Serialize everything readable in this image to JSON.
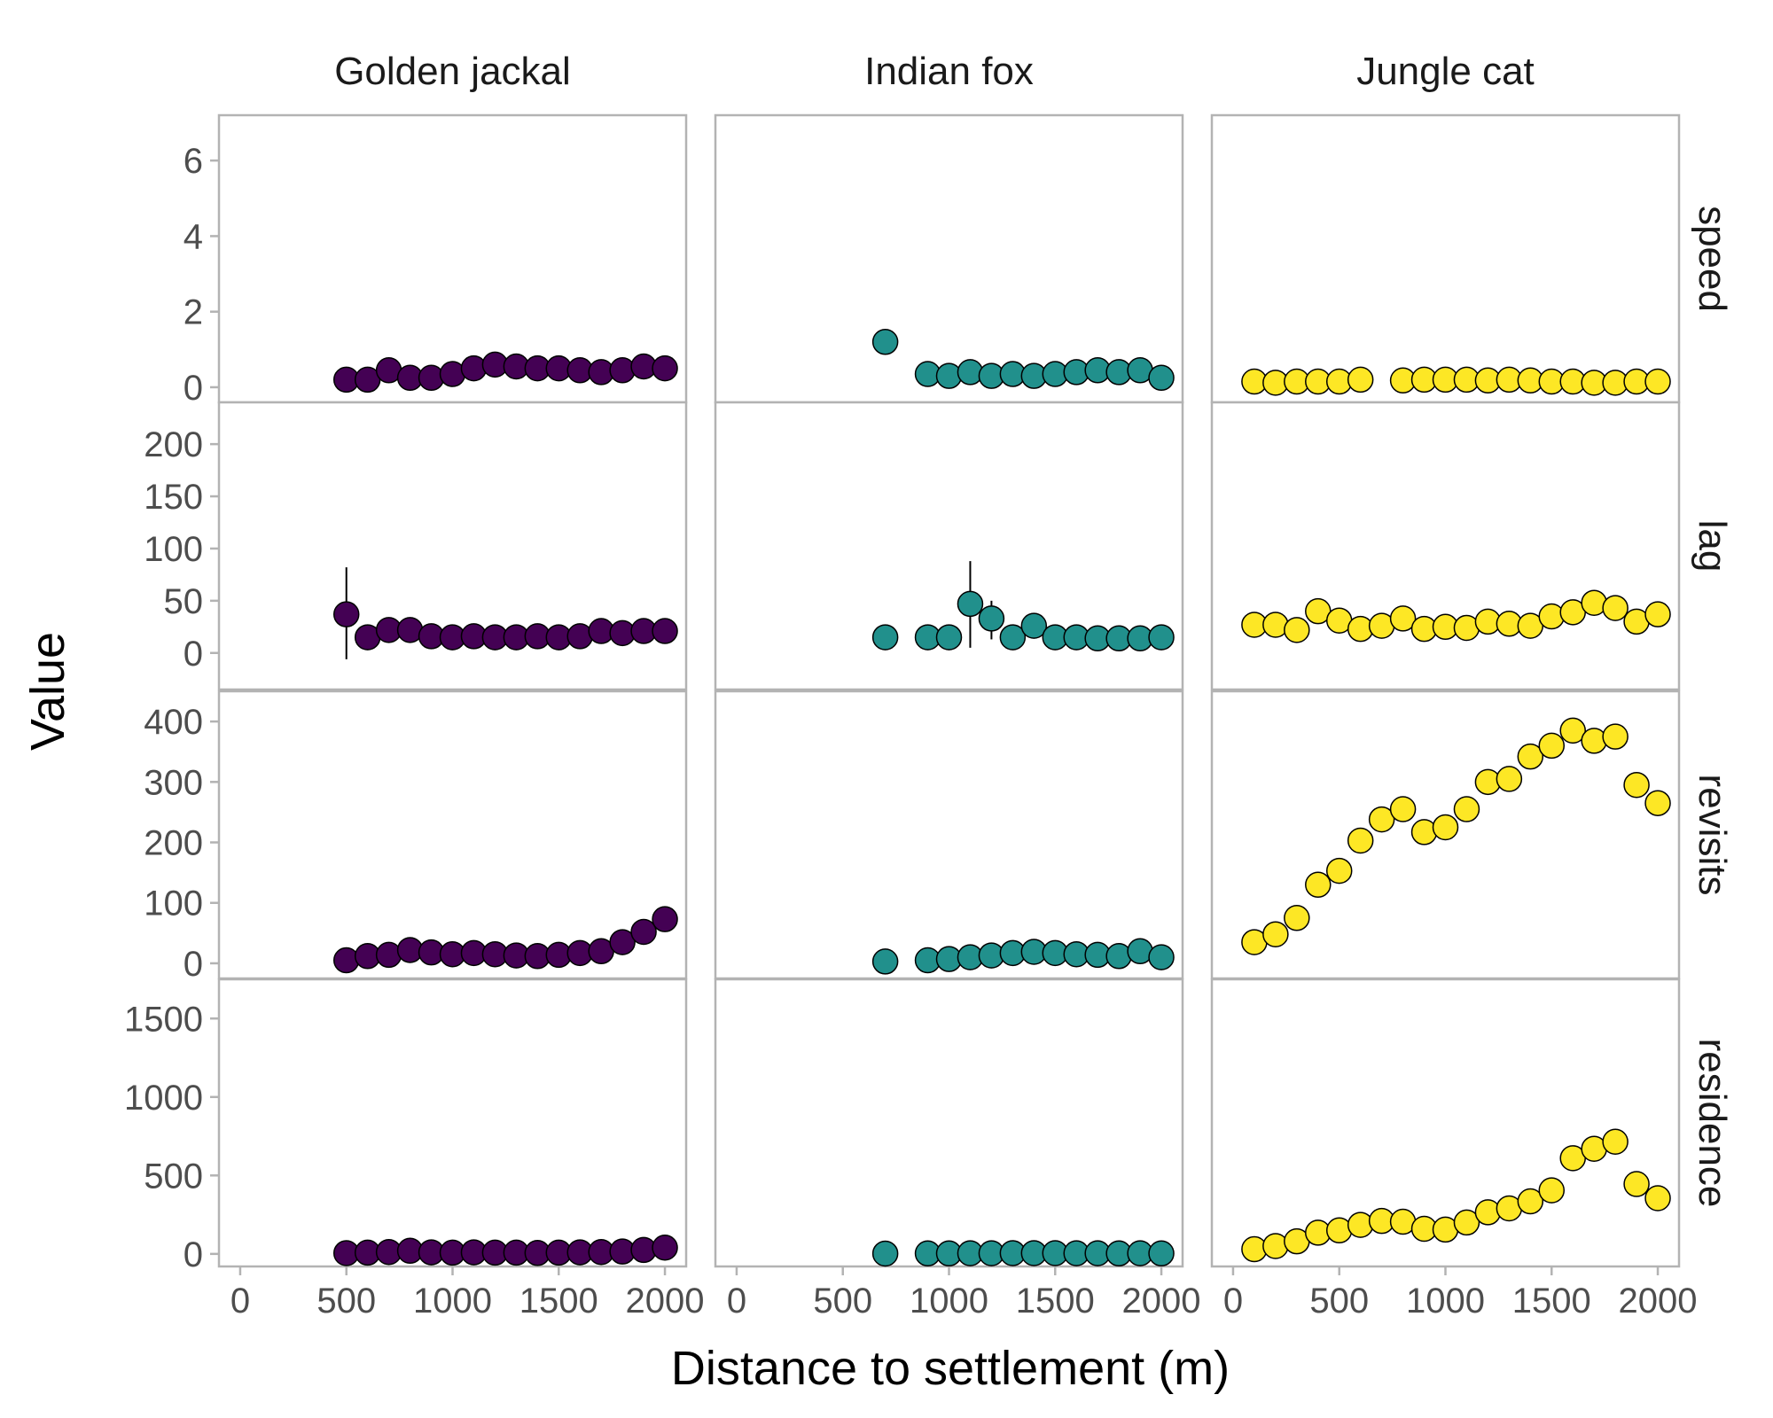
{
  "chart_data": {
    "type": "scatter",
    "xlabel": "Distance to settlement (m)",
    "ylabel": "Value",
    "xlim": [
      -100,
      2100
    ],
    "x_ticks": [
      0,
      500,
      1000,
      1500,
      2000
    ],
    "columns": [
      "Golden jackal",
      "Indian fox",
      "Jungle cat"
    ],
    "colors": {
      "Golden jackal": "#440154",
      "Indian fox": "#21908C",
      "Jungle cat": "#FDE725"
    },
    "rows": [
      {
        "name": "speed",
        "ylim": [
          -0.4,
          7.2
        ],
        "ticks": [
          0,
          2,
          4,
          6
        ]
      },
      {
        "name": "lag",
        "ylim": [
          -35,
          240
        ],
        "ticks": [
          0,
          50,
          100,
          150,
          200
        ]
      },
      {
        "name": "revisits",
        "ylim": [
          -25,
          450
        ],
        "ticks": [
          0,
          100,
          200,
          300,
          400
        ]
      },
      {
        "name": "residence",
        "ylim": [
          -80,
          1750
        ],
        "ticks": [
          0,
          500,
          1000,
          1500
        ]
      }
    ],
    "panels": [
      {
        "species": "Golden jackal",
        "metric": "speed",
        "points": [
          {
            "x": 500,
            "y": 0.2
          },
          {
            "x": 600,
            "y": 0.2
          },
          {
            "x": 700,
            "y": 0.45
          },
          {
            "x": 800,
            "y": 0.25
          },
          {
            "x": 900,
            "y": 0.25
          },
          {
            "x": 1000,
            "y": 0.35
          },
          {
            "x": 1100,
            "y": 0.5
          },
          {
            "x": 1200,
            "y": 0.6
          },
          {
            "x": 1300,
            "y": 0.55
          },
          {
            "x": 1400,
            "y": 0.5
          },
          {
            "x": 1500,
            "y": 0.5
          },
          {
            "x": 1600,
            "y": 0.45
          },
          {
            "x": 1700,
            "y": 0.4
          },
          {
            "x": 1800,
            "y": 0.45
          },
          {
            "x": 1900,
            "y": 0.55
          },
          {
            "x": 2000,
            "y": 0.5
          }
        ]
      },
      {
        "species": "Golden jackal",
        "metric": "lag",
        "points": [
          {
            "x": 500,
            "y": 37,
            "lo": -6,
            "hi": 82
          },
          {
            "x": 600,
            "y": 15
          },
          {
            "x": 700,
            "y": 22
          },
          {
            "x": 800,
            "y": 22
          },
          {
            "x": 900,
            "y": 16
          },
          {
            "x": 1000,
            "y": 15
          },
          {
            "x": 1100,
            "y": 16
          },
          {
            "x": 1200,
            "y": 15
          },
          {
            "x": 1300,
            "y": 15
          },
          {
            "x": 1400,
            "y": 16
          },
          {
            "x": 1500,
            "y": 15
          },
          {
            "x": 1600,
            "y": 16
          },
          {
            "x": 1700,
            "y": 21
          },
          {
            "x": 1800,
            "y": 19
          },
          {
            "x": 1900,
            "y": 21
          },
          {
            "x": 2000,
            "y": 21
          }
        ]
      },
      {
        "species": "Golden jackal",
        "metric": "revisits",
        "points": [
          {
            "x": 500,
            "y": 5
          },
          {
            "x": 600,
            "y": 12
          },
          {
            "x": 700,
            "y": 14
          },
          {
            "x": 800,
            "y": 22
          },
          {
            "x": 900,
            "y": 18
          },
          {
            "x": 1000,
            "y": 15
          },
          {
            "x": 1100,
            "y": 17
          },
          {
            "x": 1200,
            "y": 15
          },
          {
            "x": 1300,
            "y": 13
          },
          {
            "x": 1400,
            "y": 12
          },
          {
            "x": 1500,
            "y": 14
          },
          {
            "x": 1600,
            "y": 17
          },
          {
            "x": 1700,
            "y": 20
          },
          {
            "x": 1800,
            "y": 35
          },
          {
            "x": 1900,
            "y": 52
          },
          {
            "x": 2000,
            "y": 73
          }
        ]
      },
      {
        "species": "Golden jackal",
        "metric": "residence",
        "points": [
          {
            "x": 500,
            "y": 5
          },
          {
            "x": 600,
            "y": 8
          },
          {
            "x": 700,
            "y": 12
          },
          {
            "x": 800,
            "y": 20
          },
          {
            "x": 900,
            "y": 10
          },
          {
            "x": 1000,
            "y": 8
          },
          {
            "x": 1100,
            "y": 10
          },
          {
            "x": 1200,
            "y": 8
          },
          {
            "x": 1300,
            "y": 8
          },
          {
            "x": 1400,
            "y": 6
          },
          {
            "x": 1500,
            "y": 8
          },
          {
            "x": 1600,
            "y": 10
          },
          {
            "x": 1700,
            "y": 12
          },
          {
            "x": 1800,
            "y": 15
          },
          {
            "x": 1900,
            "y": 25
          },
          {
            "x": 2000,
            "y": 40
          }
        ]
      },
      {
        "species": "Indian fox",
        "metric": "speed",
        "points": [
          {
            "x": 700,
            "y": 1.2
          },
          {
            "x": 900,
            "y": 0.35
          },
          {
            "x": 1000,
            "y": 0.3
          },
          {
            "x": 1100,
            "y": 0.4
          },
          {
            "x": 1200,
            "y": 0.3
          },
          {
            "x": 1300,
            "y": 0.35
          },
          {
            "x": 1400,
            "y": 0.3
          },
          {
            "x": 1500,
            "y": 0.35
          },
          {
            "x": 1600,
            "y": 0.4
          },
          {
            "x": 1700,
            "y": 0.45
          },
          {
            "x": 1800,
            "y": 0.4
          },
          {
            "x": 1900,
            "y": 0.45
          },
          {
            "x": 2000,
            "y": 0.25
          }
        ]
      },
      {
        "species": "Indian fox",
        "metric": "lag",
        "points": [
          {
            "x": 700,
            "y": 15
          },
          {
            "x": 900,
            "y": 15
          },
          {
            "x": 1000,
            "y": 15
          },
          {
            "x": 1100,
            "y": 47,
            "lo": 5,
            "hi": 88
          },
          {
            "x": 1200,
            "y": 33,
            "lo": 13,
            "hi": 50
          },
          {
            "x": 1300,
            "y": 15
          },
          {
            "x": 1400,
            "y": 26
          },
          {
            "x": 1500,
            "y": 15
          },
          {
            "x": 1600,
            "y": 15
          },
          {
            "x": 1700,
            "y": 14
          },
          {
            "x": 1800,
            "y": 14
          },
          {
            "x": 1900,
            "y": 14
          },
          {
            "x": 2000,
            "y": 15
          }
        ]
      },
      {
        "species": "Indian fox",
        "metric": "revisits",
        "points": [
          {
            "x": 700,
            "y": 3
          },
          {
            "x": 900,
            "y": 5
          },
          {
            "x": 1000,
            "y": 7
          },
          {
            "x": 1100,
            "y": 10
          },
          {
            "x": 1200,
            "y": 13
          },
          {
            "x": 1300,
            "y": 17
          },
          {
            "x": 1400,
            "y": 19
          },
          {
            "x": 1500,
            "y": 17
          },
          {
            "x": 1600,
            "y": 15
          },
          {
            "x": 1700,
            "y": 14
          },
          {
            "x": 1800,
            "y": 12
          },
          {
            "x": 1900,
            "y": 20
          },
          {
            "x": 2000,
            "y": 10
          }
        ]
      },
      {
        "species": "Indian fox",
        "metric": "residence",
        "points": [
          {
            "x": 700,
            "y": 2
          },
          {
            "x": 900,
            "y": 3
          },
          {
            "x": 1000,
            "y": 3
          },
          {
            "x": 1100,
            "y": 4
          },
          {
            "x": 1200,
            "y": 4
          },
          {
            "x": 1300,
            "y": 5
          },
          {
            "x": 1400,
            "y": 5
          },
          {
            "x": 1500,
            "y": 5
          },
          {
            "x": 1600,
            "y": 4
          },
          {
            "x": 1700,
            "y": 4
          },
          {
            "x": 1800,
            "y": 3
          },
          {
            "x": 1900,
            "y": 4
          },
          {
            "x": 2000,
            "y": 3
          }
        ]
      },
      {
        "species": "Jungle cat",
        "metric": "speed",
        "points": [
          {
            "x": 100,
            "y": 0.15
          },
          {
            "x": 200,
            "y": 0.12
          },
          {
            "x": 300,
            "y": 0.15
          },
          {
            "x": 400,
            "y": 0.15
          },
          {
            "x": 500,
            "y": 0.15
          },
          {
            "x": 600,
            "y": 0.2
          },
          {
            "x": 800,
            "y": 0.18
          },
          {
            "x": 900,
            "y": 0.2
          },
          {
            "x": 1000,
            "y": 0.2
          },
          {
            "x": 1100,
            "y": 0.2
          },
          {
            "x": 1200,
            "y": 0.18
          },
          {
            "x": 1300,
            "y": 0.2
          },
          {
            "x": 1400,
            "y": 0.18
          },
          {
            "x": 1500,
            "y": 0.15
          },
          {
            "x": 1600,
            "y": 0.15
          },
          {
            "x": 1700,
            "y": 0.12
          },
          {
            "x": 1800,
            "y": 0.12
          },
          {
            "x": 1900,
            "y": 0.15
          },
          {
            "x": 2000,
            "y": 0.15
          }
        ]
      },
      {
        "species": "Jungle cat",
        "metric": "lag",
        "points": [
          {
            "x": 100,
            "y": 27
          },
          {
            "x": 200,
            "y": 27
          },
          {
            "x": 300,
            "y": 22
          },
          {
            "x": 400,
            "y": 40
          },
          {
            "x": 500,
            "y": 31
          },
          {
            "x": 600,
            "y": 23
          },
          {
            "x": 700,
            "y": 26
          },
          {
            "x": 800,
            "y": 33
          },
          {
            "x": 900,
            "y": 23
          },
          {
            "x": 1000,
            "y": 25
          },
          {
            "x": 1100,
            "y": 24
          },
          {
            "x": 1200,
            "y": 30
          },
          {
            "x": 1300,
            "y": 28
          },
          {
            "x": 1400,
            "y": 26
          },
          {
            "x": 1500,
            "y": 35
          },
          {
            "x": 1600,
            "y": 39
          },
          {
            "x": 1700,
            "y": 48
          },
          {
            "x": 1800,
            "y": 43
          },
          {
            "x": 1900,
            "y": 30
          },
          {
            "x": 2000,
            "y": 37
          }
        ]
      },
      {
        "species": "Jungle cat",
        "metric": "revisits",
        "points": [
          {
            "x": 100,
            "y": 35
          },
          {
            "x": 200,
            "y": 48
          },
          {
            "x": 300,
            "y": 75
          },
          {
            "x": 400,
            "y": 130
          },
          {
            "x": 500,
            "y": 153
          },
          {
            "x": 600,
            "y": 203
          },
          {
            "x": 700,
            "y": 238
          },
          {
            "x": 800,
            "y": 255
          },
          {
            "x": 900,
            "y": 217
          },
          {
            "x": 1000,
            "y": 225
          },
          {
            "x": 1100,
            "y": 255
          },
          {
            "x": 1200,
            "y": 300
          },
          {
            "x": 1300,
            "y": 305
          },
          {
            "x": 1400,
            "y": 342
          },
          {
            "x": 1500,
            "y": 360
          },
          {
            "x": 1600,
            "y": 385
          },
          {
            "x": 1700,
            "y": 368
          },
          {
            "x": 1800,
            "y": 375
          },
          {
            "x": 1900,
            "y": 295
          },
          {
            "x": 2000,
            "y": 265
          }
        ]
      },
      {
        "species": "Jungle cat",
        "metric": "residence",
        "points": [
          {
            "x": 100,
            "y": 30
          },
          {
            "x": 200,
            "y": 50
          },
          {
            "x": 300,
            "y": 80
          },
          {
            "x": 400,
            "y": 135
          },
          {
            "x": 500,
            "y": 150
          },
          {
            "x": 600,
            "y": 185
          },
          {
            "x": 700,
            "y": 210
          },
          {
            "x": 800,
            "y": 205
          },
          {
            "x": 900,
            "y": 160
          },
          {
            "x": 1000,
            "y": 155
          },
          {
            "x": 1100,
            "y": 200
          },
          {
            "x": 1200,
            "y": 265
          },
          {
            "x": 1300,
            "y": 290
          },
          {
            "x": 1400,
            "y": 335
          },
          {
            "x": 1500,
            "y": 405
          },
          {
            "x": 1600,
            "y": 610
          },
          {
            "x": 1700,
            "y": 670
          },
          {
            "x": 1800,
            "y": 715
          },
          {
            "x": 1900,
            "y": 445
          },
          {
            "x": 2000,
            "y": 355
          }
        ]
      }
    ]
  }
}
